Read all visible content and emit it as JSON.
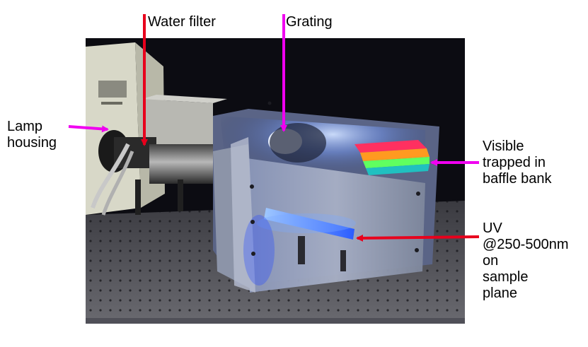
{
  "labels": {
    "water_filter": "Water filter",
    "grating": "Grating",
    "lamp_housing": [
      "Lamp",
      "housing"
    ],
    "visible_trapped": [
      "Visible",
      "trapped in",
      "baffle bank"
    ],
    "uv": [
      "UV",
      "@250-500nm",
      "on",
      "sample",
      "plane"
    ]
  },
  "colors": {
    "arrow_red": "#e8001c",
    "arrow_magenta": "#f000f0",
    "photo_background": "#0c0c12"
  }
}
